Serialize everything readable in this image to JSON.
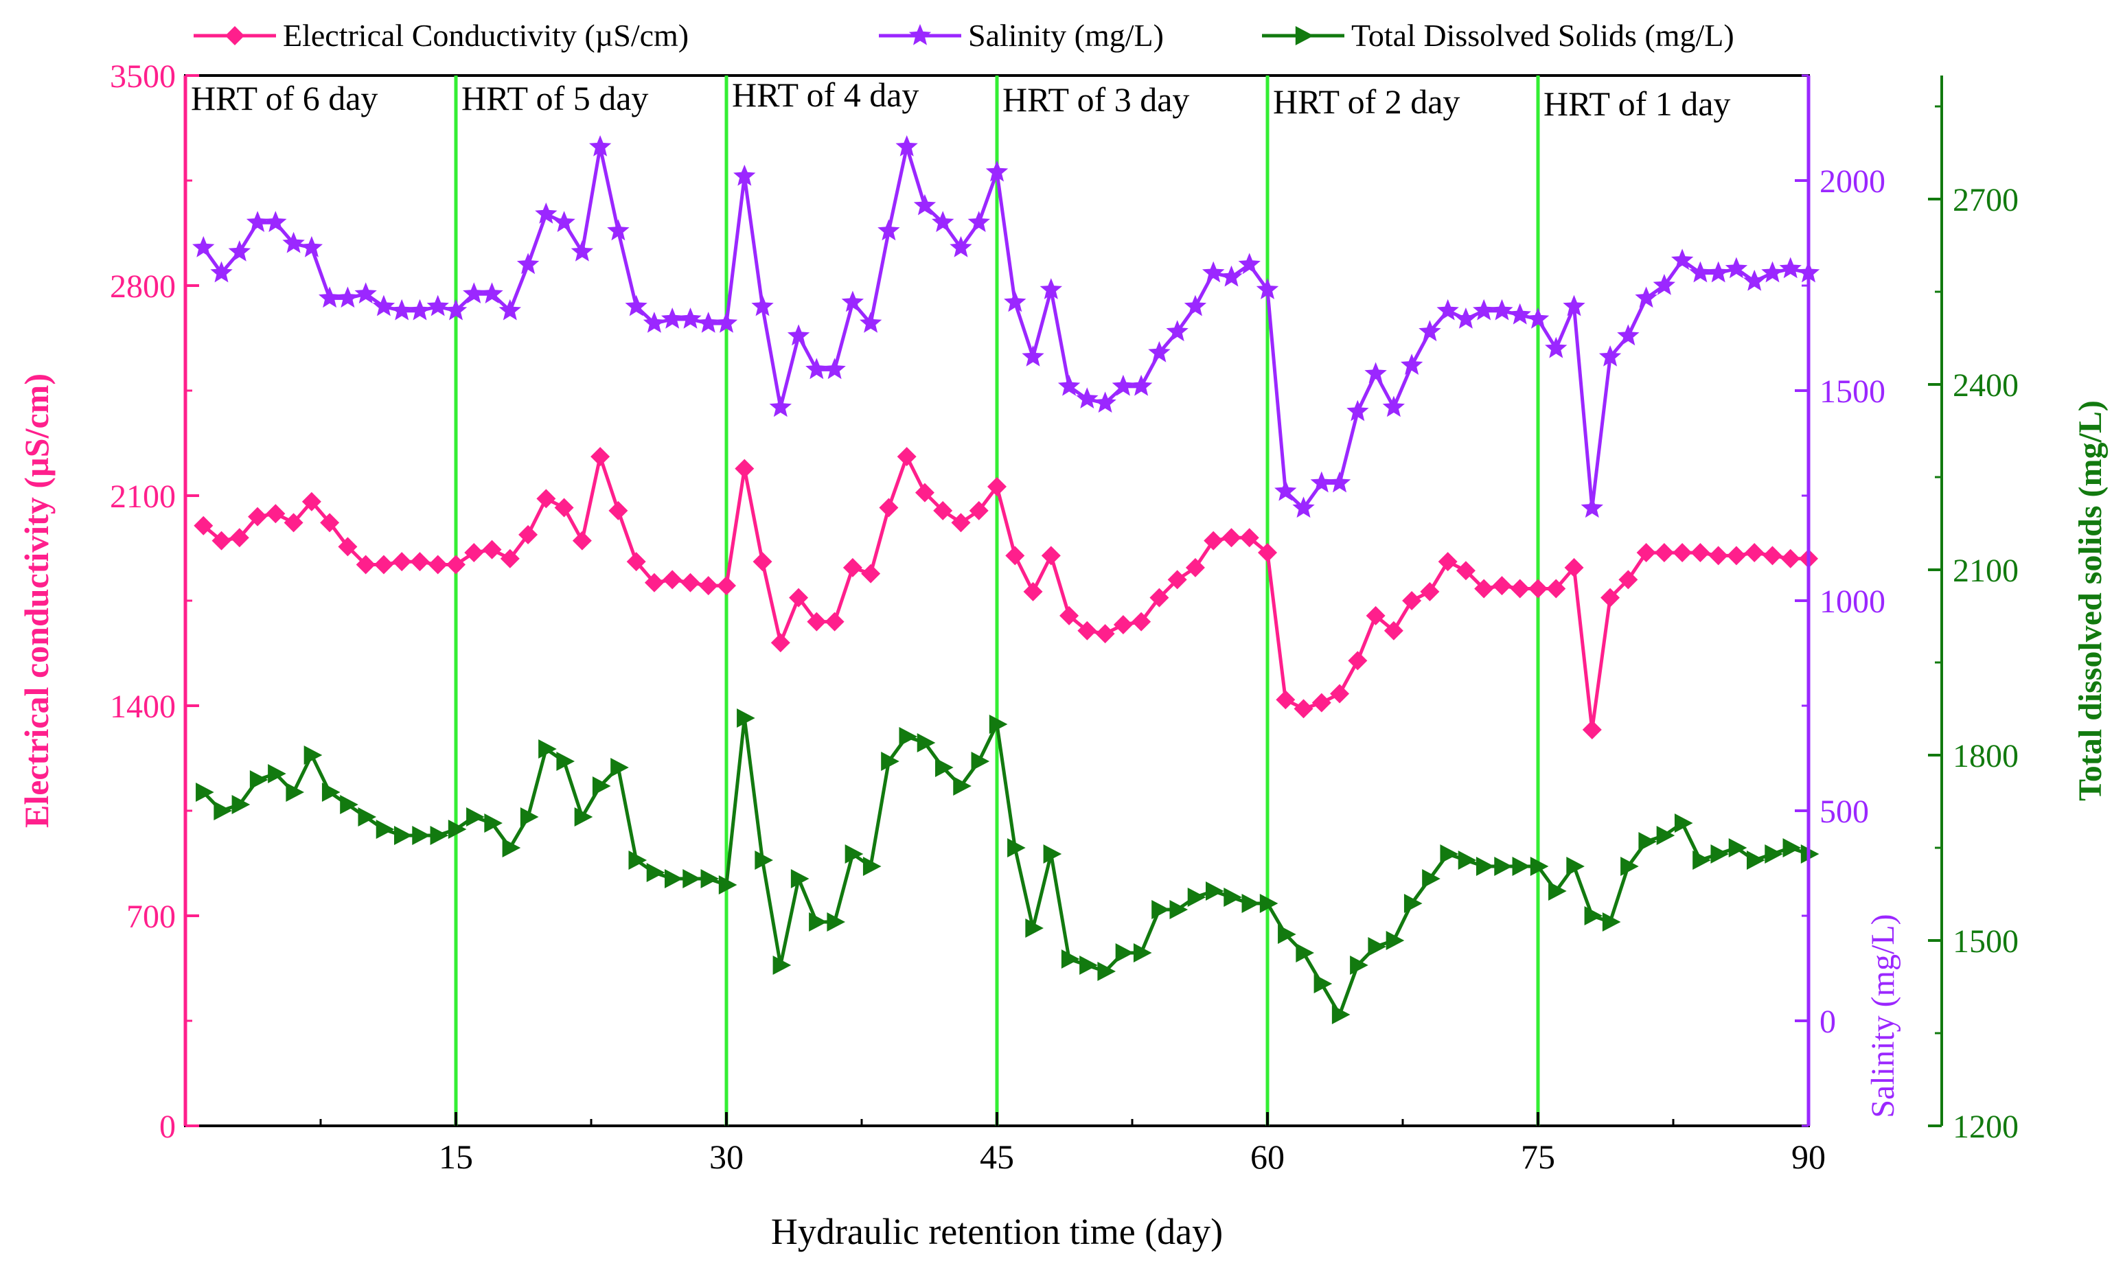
{
  "colors": {
    "ec": "#ff1f8c",
    "sal": "#9b27ff",
    "tds": "#127a0f",
    "phase_line": "#33ee33",
    "axis": "#000000"
  },
  "legend": {
    "ec": "Electrical Conductivity (µS/cm)",
    "sal": "Salinity (mg/L)",
    "tds": "Total Dissolved Solids (mg/L)"
  },
  "chart_data": {
    "type": "line",
    "xlabel": "Hydraulic retention time (day)",
    "xlim": [
      0,
      90
    ],
    "xticks": [
      15,
      30,
      45,
      60,
      75,
      90
    ],
    "phase_boundaries": [
      15,
      30,
      45,
      60,
      75
    ],
    "phases": [
      {
        "label": "HRT of 6 day",
        "start": 0,
        "end": 15
      },
      {
        "label": "HRT of 5 day",
        "start": 15,
        "end": 30
      },
      {
        "label": "HRT of 4 day",
        "start": 30,
        "end": 45
      },
      {
        "label": "HRT of 3 day",
        "start": 45,
        "end": 60
      },
      {
        "label": "HRT of 2 day",
        "start": 60,
        "end": 75
      },
      {
        "label": "HRT of 1 day",
        "start": 75,
        "end": 90
      }
    ],
    "axes": {
      "left": {
        "label": "Electrical conductivity (µS/cm)",
        "range": [
          0,
          3500
        ],
        "ticks": [
          0,
          700,
          1400,
          2100,
          2800,
          3500
        ]
      },
      "right1": {
        "label": "Salinity (mg/L)",
        "range": [
          -250,
          2250
        ],
        "ticks": [
          0,
          500,
          1000,
          1500,
          2000
        ]
      },
      "right2": {
        "label": "Total dissolved solids (mg/L)",
        "range": [
          1200,
          2900
        ],
        "ticks": [
          1200,
          1500,
          1800,
          2100,
          2400,
          2700
        ]
      }
    },
    "x": [
      1,
      2,
      3,
      4,
      5,
      6,
      7,
      8,
      9,
      10,
      11,
      12,
      13,
      14,
      15,
      16,
      17,
      18,
      19,
      20,
      21,
      22,
      23,
      24,
      25,
      26,
      27,
      28,
      29,
      30,
      31,
      32,
      33,
      34,
      35,
      36,
      37,
      38,
      39,
      40,
      41,
      42,
      43,
      44,
      45,
      46,
      47,
      48,
      49,
      50,
      51,
      52,
      53,
      54,
      55,
      56,
      57,
      58,
      59,
      60,
      61,
      62,
      63,
      64,
      65,
      66,
      67,
      68,
      69,
      70,
      71,
      72,
      73,
      74,
      75,
      76,
      77,
      78,
      79,
      80,
      81,
      82,
      83,
      84,
      85,
      86,
      87,
      88,
      89,
      90
    ],
    "series": [
      {
        "name": "Electrical Conductivity (µS/cm)",
        "axis": "left",
        "marker": "diamond",
        "values": [
          2000,
          1950,
          1960,
          2030,
          2040,
          2010,
          2080,
          2010,
          1930,
          1870,
          1870,
          1880,
          1880,
          1870,
          1870,
          1910,
          1920,
          1890,
          1970,
          2090,
          2060,
          1950,
          2230,
          2050,
          1880,
          1810,
          1820,
          1810,
          1800,
          1800,
          2190,
          1880,
          1610,
          1760,
          1680,
          1680,
          1860,
          1840,
          2060,
          2230,
          2110,
          2050,
          2010,
          2050,
          2130,
          1900,
          1780,
          1900,
          1700,
          1650,
          1640,
          1670,
          1680,
          1760,
          1820,
          1860,
          1950,
          1960,
          1960,
          1910,
          1420,
          1390,
          1410,
          1440,
          1550,
          1700,
          1650,
          1750,
          1780,
          1880,
          1850,
          1790,
          1800,
          1790,
          1790,
          1790,
          1860,
          1320,
          1760,
          1820,
          1910,
          1910,
          1910,
          1910,
          1900,
          1900,
          1910,
          1900,
          1890,
          1890
        ]
      },
      {
        "name": "Salinity (mg/L)",
        "axis": "right1",
        "marker": "star",
        "values": [
          1840,
          1780,
          1830,
          1900,
          1900,
          1850,
          1840,
          1720,
          1720,
          1730,
          1700,
          1690,
          1690,
          1700,
          1690,
          1730,
          1730,
          1690,
          1800,
          1920,
          1900,
          1830,
          2080,
          1880,
          1700,
          1660,
          1670,
          1670,
          1660,
          1660,
          2010,
          1700,
          1460,
          1630,
          1550,
          1550,
          1710,
          1660,
          1880,
          2080,
          1940,
          1900,
          1840,
          1900,
          2020,
          1710,
          1580,
          1740,
          1510,
          1480,
          1470,
          1510,
          1510,
          1590,
          1640,
          1700,
          1780,
          1770,
          1800,
          1740,
          1260,
          1220,
          1280,
          1280,
          1450,
          1540,
          1460,
          1560,
          1640,
          1690,
          1670,
          1690,
          1690,
          1680,
          1670,
          1600,
          1700,
          1220,
          1580,
          1630,
          1720,
          1750,
          1810,
          1780,
          1780,
          1790,
          1760,
          1780,
          1790,
          1780
        ]
      },
      {
        "name": "Total Dissolved Solids (mg/L)",
        "axis": "right2",
        "marker": "triangle-right",
        "values": [
          1740,
          1710,
          1720,
          1760,
          1770,
          1740,
          1800,
          1740,
          1720,
          1700,
          1680,
          1670,
          1670,
          1670,
          1680,
          1700,
          1690,
          1650,
          1700,
          1810,
          1790,
          1700,
          1750,
          1780,
          1630,
          1610,
          1600,
          1600,
          1600,
          1590,
          1860,
          1630,
          1460,
          1600,
          1530,
          1530,
          1640,
          1620,
          1790,
          1830,
          1820,
          1780,
          1750,
          1790,
          1850,
          1650,
          1520,
          1640,
          1470,
          1460,
          1450,
          1480,
          1480,
          1550,
          1550,
          1570,
          1580,
          1570,
          1560,
          1560,
          1510,
          1480,
          1430,
          1380,
          1460,
          1490,
          1500,
          1560,
          1600,
          1640,
          1630,
          1620,
          1620,
          1620,
          1620,
          1580,
          1620,
          1540,
          1530,
          1620,
          1660,
          1670,
          1690,
          1630,
          1640,
          1650,
          1630,
          1640,
          1650,
          1640
        ]
      }
    ]
  }
}
